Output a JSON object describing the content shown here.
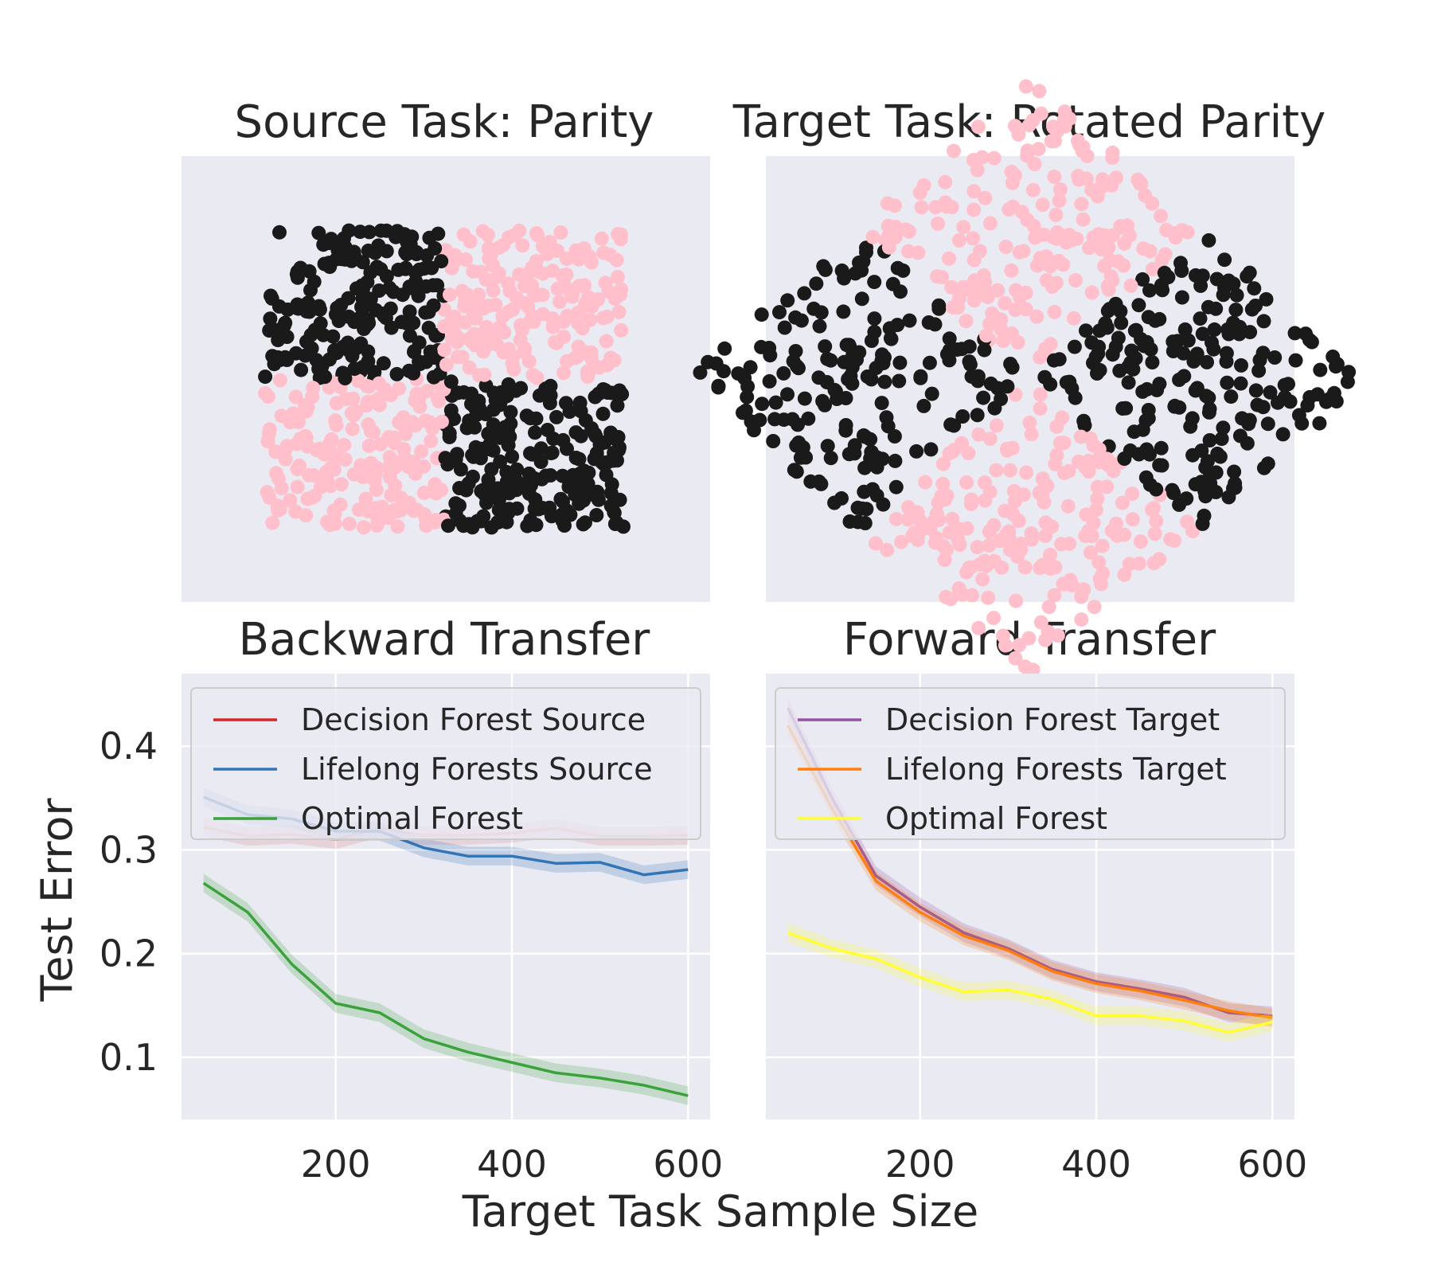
{
  "chart_data": [
    {
      "id": "source",
      "type": "scatter",
      "title": "Source Task: Parity",
      "classes": [
        "pink",
        "black"
      ],
      "colors": {
        "pink": "#ffc0cb",
        "black": "#1a1a1a"
      },
      "grid": false
    },
    {
      "id": "target",
      "type": "scatter",
      "title": "Target Task: Rotated Parity",
      "classes": [
        "pink",
        "black"
      ],
      "colors": {
        "pink": "#ffc0cb",
        "black": "#1a1a1a"
      },
      "grid": false
    },
    {
      "id": "backward",
      "type": "line",
      "title": "Backward Transfer",
      "xlabel": "Target Task Sample Size",
      "ylabel": "Test Error",
      "xlim": [
        25,
        625
      ],
      "ylim": [
        0.04,
        0.47
      ],
      "xticks": [
        200,
        400,
        600
      ],
      "yticks": [
        0.1,
        0.2,
        0.3,
        0.4
      ],
      "grid": true,
      "legend_position": "top",
      "x": [
        50,
        100,
        150,
        200,
        250,
        300,
        350,
        400,
        450,
        500,
        550,
        600
      ],
      "series": [
        {
          "name": "Decision Forest Source",
          "color": "#d62728",
          "faded": true,
          "values": [
            0.322,
            0.313,
            0.315,
            0.31,
            0.321,
            0.314,
            0.314,
            0.316,
            0.321,
            0.313,
            0.313,
            0.314
          ]
        },
        {
          "name": "Lifelong Forests Source",
          "color": "#3274b5",
          "faded": false,
          "values": [
            0.351,
            0.334,
            0.33,
            0.318,
            0.318,
            0.302,
            0.294,
            0.294,
            0.287,
            0.288,
            0.276,
            0.281
          ]
        },
        {
          "name": "Optimal Forest",
          "color": "#3aa23a",
          "faded": false,
          "values": [
            0.268,
            0.24,
            0.19,
            0.152,
            0.143,
            0.118,
            0.105,
            0.095,
            0.085,
            0.08,
            0.073,
            0.063
          ]
        }
      ]
    },
    {
      "id": "forward",
      "type": "line",
      "title": "Forward Transfer",
      "xlim": [
        25,
        625
      ],
      "ylim": [
        0.04,
        0.47
      ],
      "xticks": [
        200,
        400,
        600
      ],
      "grid": true,
      "legend_position": "top",
      "x": [
        50,
        100,
        150,
        200,
        250,
        300,
        350,
        400,
        450,
        500,
        550,
        600
      ],
      "series": [
        {
          "name": "Decision Forest Target",
          "color": "#9452a5",
          "faded": false,
          "values": [
            0.437,
            0.35,
            0.275,
            0.245,
            0.22,
            0.205,
            0.185,
            0.173,
            0.166,
            0.158,
            0.143,
            0.14
          ]
        },
        {
          "name": "Lifelong Forests Target",
          "color": "#ff7f0e",
          "faded": false,
          "values": [
            0.42,
            0.34,
            0.27,
            0.24,
            0.217,
            0.203,
            0.183,
            0.171,
            0.164,
            0.155,
            0.145,
            0.138
          ]
        },
        {
          "name": "Optimal Forest",
          "color": "#ffff33",
          "faded": false,
          "values": [
            0.22,
            0.205,
            0.195,
            0.177,
            0.163,
            0.165,
            0.156,
            0.14,
            0.14,
            0.135,
            0.124,
            0.134
          ]
        }
      ]
    }
  ]
}
